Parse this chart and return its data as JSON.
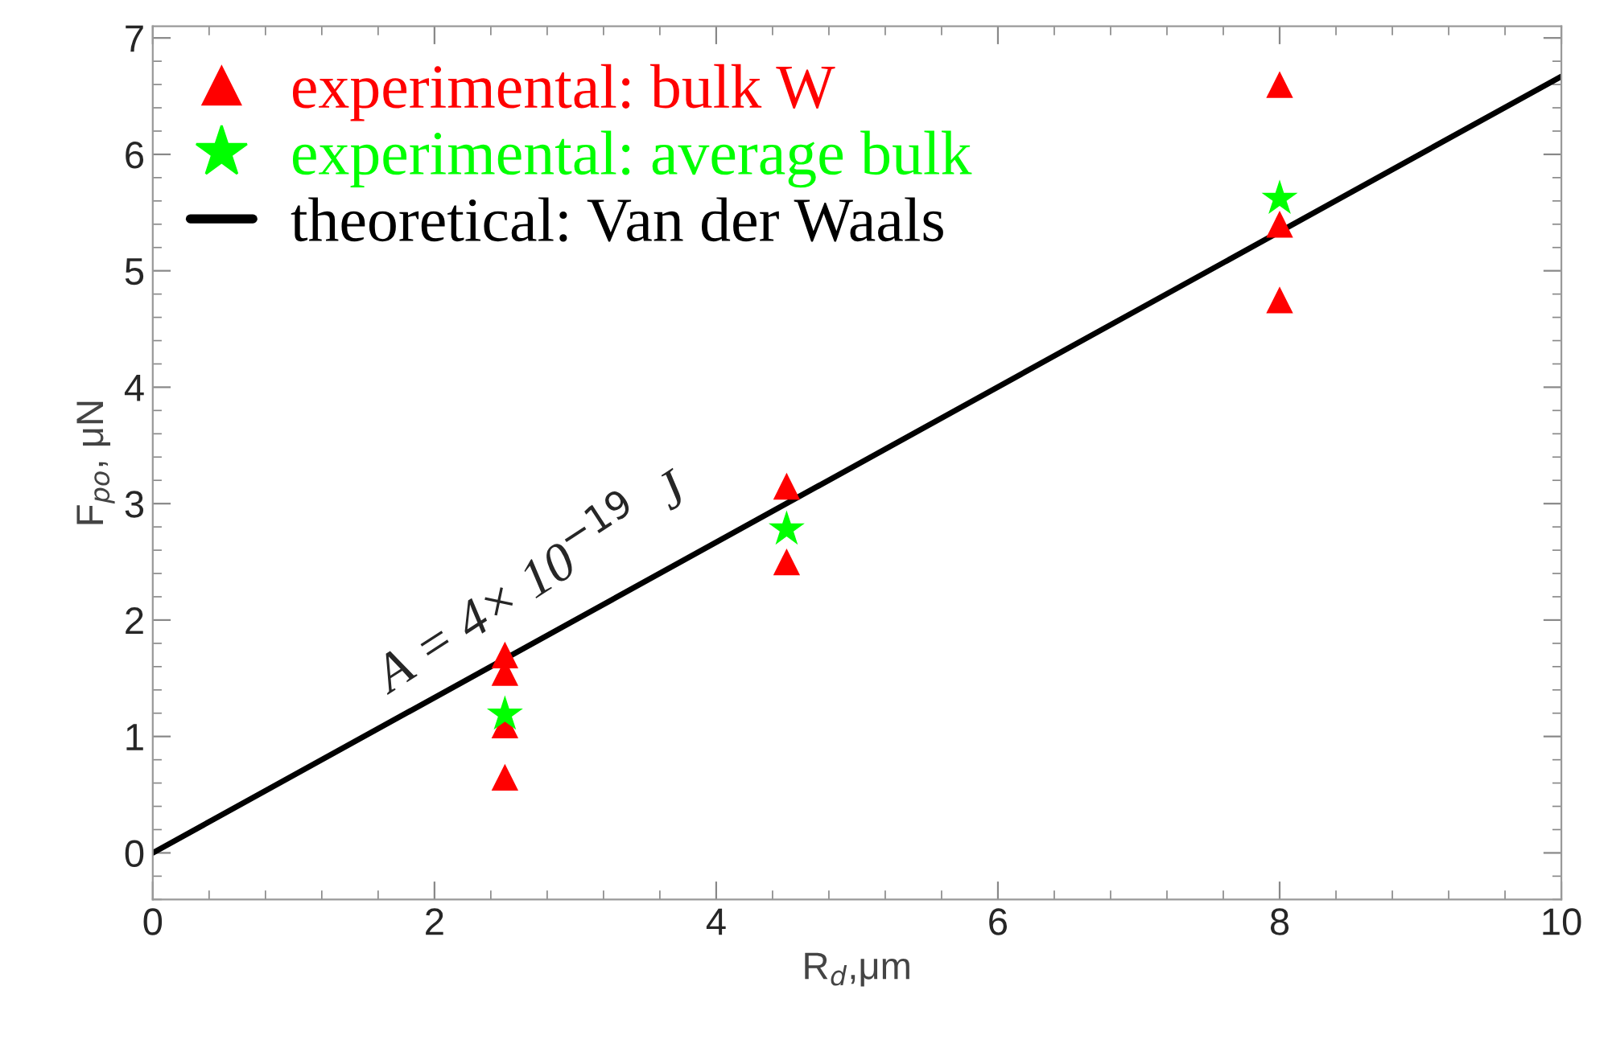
{
  "chart_data": {
    "type": "scatter",
    "xlabel": "R$_{d}$,μm",
    "ylabel": "F$_{po}$, μN",
    "series": [
      {
        "name": "experimental: bulk W",
        "marker": "triangle",
        "color": "#ff0000",
        "x": [
          2.5,
          2.5,
          2.5,
          2.5,
          4.5,
          4.5,
          8,
          8,
          8
        ],
        "values": [
          1.7,
          1.55,
          1.1,
          0.65,
          3.15,
          2.5,
          6.6,
          5.4,
          4.75
        ]
      },
      {
        "name": "experimental: average bulk",
        "marker": "star",
        "color": "#00ff00",
        "x": [
          2.5,
          4.5,
          8
        ],
        "values": [
          1.19,
          2.78,
          5.62
        ]
      },
      {
        "name": "theoretical: Van der Waals",
        "type": "line",
        "marker": "none",
        "line_style": "solid",
        "color": "#000000",
        "x": [
          0,
          10
        ],
        "values": [
          0,
          6.67
        ]
      }
    ],
    "annotations": [
      "A = 4× 10$^{−19}$  J"
    ],
    "xlim": [
      0,
      10
    ],
    "ylim": [
      -0.4,
      7.1
    ],
    "xticks": [
      0,
      2,
      4,
      6,
      8,
      10
    ],
    "yticks": [
      0,
      1,
      2,
      3,
      4,
      5,
      6,
      7
    ],
    "grid": false,
    "legend": "top left"
  }
}
